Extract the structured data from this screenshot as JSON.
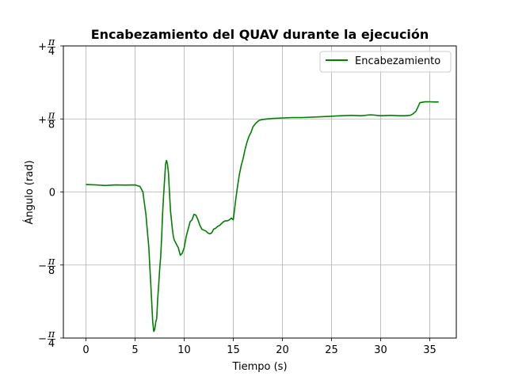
{
  "chart_data": {
    "type": "line",
    "title": "Encabezamiento del QUAV durante la ejecución",
    "xlabel": "Tiempo (s)",
    "ylabel": "Ángulo (rad)",
    "xlim": [
      -2.3,
      37.7
    ],
    "ylim": [
      -0.7854,
      0.7854
    ],
    "grid": true,
    "legend_position": "upper right",
    "x_ticks": [
      {
        "value": 0,
        "label": "0"
      },
      {
        "value": 5,
        "label": "5"
      },
      {
        "value": 10,
        "label": "10"
      },
      {
        "value": 15,
        "label": "15"
      },
      {
        "value": 20,
        "label": "20"
      },
      {
        "value": 25,
        "label": "25"
      },
      {
        "value": 30,
        "label": "30"
      },
      {
        "value": 35,
        "label": "35"
      }
    ],
    "y_ticks": [
      {
        "value": -0.7854,
        "sign": "−",
        "num": "π",
        "den": "4"
      },
      {
        "value": -0.3927,
        "sign": "−",
        "num": "π",
        "den": "8"
      },
      {
        "value": 0,
        "sign": "",
        "num": "0",
        "den": ""
      },
      {
        "value": 0.3927,
        "sign": "+",
        "num": "π",
        "den": "8"
      },
      {
        "value": 0.7854,
        "sign": "+",
        "num": "π",
        "den": "4"
      }
    ],
    "series": [
      {
        "name": "Encabezamiento",
        "color": "#008000",
        "x": [
          0,
          1,
          2,
          3,
          4,
          5,
          5.5,
          5.8,
          6.0,
          6.1,
          6.2,
          6.4,
          6.5,
          6.6,
          6.7,
          6.8,
          6.9,
          7.0,
          7.1,
          7.2,
          7.3,
          7.4,
          7.5,
          7.6,
          7.7,
          7.8,
          7.9,
          8.0,
          8.1,
          8.2,
          8.3,
          8.4,
          8.5,
          8.6,
          8.7,
          8.8,
          8.9,
          9.0,
          9.1,
          9.2,
          9.3,
          9.4,
          9.5,
          9.6,
          9.8,
          10.0,
          10.2,
          10.4,
          10.6,
          10.8,
          11.0,
          11.2,
          11.4,
          11.6,
          11.8,
          12.0,
          12.2,
          12.4,
          12.6,
          12.8,
          13.0,
          13.2,
          13.4,
          13.6,
          13.8,
          14.0,
          14.2,
          14.4,
          14.6,
          14.8,
          15.0,
          15.2,
          15.4,
          15.6,
          15.8,
          16.0,
          16.2,
          16.4,
          16.6,
          16.8,
          17.0,
          17.3,
          17.6,
          18.0,
          18.5,
          19.0,
          20.0,
          21.0,
          22.0,
          24.0,
          26.0,
          27.0,
          28.0,
          29.0,
          30.0,
          31.0,
          32.0,
          32.5,
          33.0,
          33.3,
          33.6,
          34.0,
          34.5,
          35.0,
          35.5,
          35.9
        ],
        "y": [
          0.04,
          0.038,
          0.035,
          0.038,
          0.037,
          0.038,
          0.03,
          0.0,
          -0.08,
          -0.12,
          -0.18,
          -0.3,
          -0.4,
          -0.5,
          -0.6,
          -0.7,
          -0.75,
          -0.74,
          -0.7,
          -0.68,
          -0.58,
          -0.5,
          -0.42,
          -0.35,
          -0.25,
          -0.12,
          -0.02,
          0.06,
          0.15,
          0.17,
          0.15,
          0.1,
          0.0,
          -0.1,
          -0.15,
          -0.2,
          -0.24,
          -0.26,
          -0.27,
          -0.28,
          -0.29,
          -0.3,
          -0.32,
          -0.34,
          -0.33,
          -0.3,
          -0.24,
          -0.2,
          -0.16,
          -0.15,
          -0.12,
          -0.125,
          -0.15,
          -0.18,
          -0.2,
          -0.205,
          -0.21,
          -0.22,
          -0.225,
          -0.22,
          -0.2,
          -0.195,
          -0.185,
          -0.18,
          -0.17,
          -0.16,
          -0.155,
          -0.155,
          -0.15,
          -0.14,
          -0.15,
          -0.06,
          0.02,
          0.09,
          0.14,
          0.18,
          0.23,
          0.27,
          0.3,
          0.32,
          0.35,
          0.37,
          0.385,
          0.39,
          0.393,
          0.395,
          0.398,
          0.4,
          0.4,
          0.405,
          0.41,
          0.412,
          0.41,
          0.415,
          0.41,
          0.412,
          0.41,
          0.41,
          0.412,
          0.42,
          0.435,
          0.48,
          0.485,
          0.485,
          0.484,
          0.484
        ]
      }
    ]
  }
}
